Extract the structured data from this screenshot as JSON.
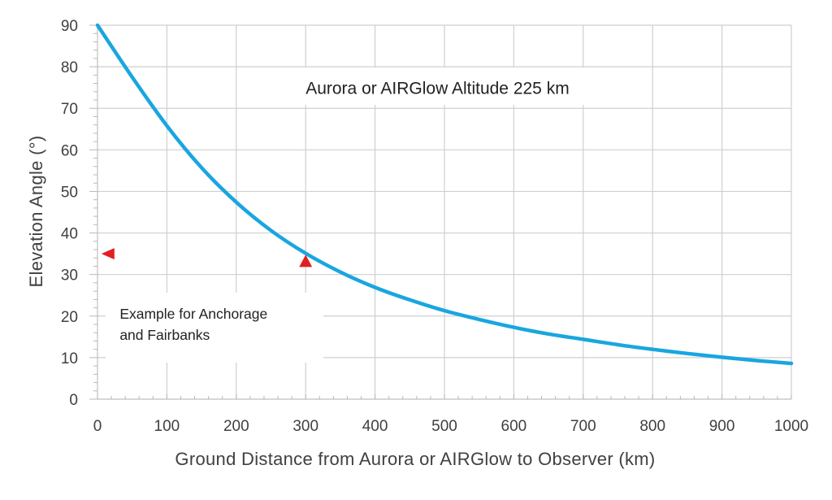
{
  "chart_data": {
    "type": "line",
    "xlabel": "Ground Distance from Aurora or AIRGlow to Observer (km)",
    "ylabel": "Elevation Angle (°)",
    "xlim": [
      0,
      1000
    ],
    "ylim": [
      0,
      90
    ],
    "x_ticks": [
      "0",
      "100",
      "200",
      "300",
      "400",
      "500",
      "600",
      "700",
      "800",
      "900",
      "1000"
    ],
    "y_ticks": [
      "0",
      "10",
      "20",
      "30",
      "40",
      "50",
      "60",
      "70",
      "80",
      "90"
    ],
    "grid": true,
    "series": [
      {
        "color": "#19a6e0",
        "x": [
          0,
          50,
          100,
          150,
          200,
          250,
          300,
          350,
          400,
          450,
          500,
          550,
          600,
          650,
          700,
          750,
          800,
          850,
          900,
          950,
          1000
        ],
        "y": [
          90,
          77.5,
          65.8,
          55.7,
          47.4,
          40.6,
          35.1,
          30.6,
          26.9,
          23.9,
          21.3,
          19.2,
          17.3,
          15.7,
          14.4,
          13.1,
          12.0,
          11.0,
          10.1,
          9.3,
          8.6
        ]
      }
    ],
    "annotations": [
      {
        "text": "Aurora or AIRGlow Altitude 225 km",
        "x": 490,
        "y": 75
      },
      {
        "text": "Example for Anchorage",
        "x": 32,
        "y": 20.5
      },
      {
        "text": "and Fairbanks",
        "x": 32,
        "y": 15.5
      }
    ],
    "markers": [
      {
        "shape": "triangle-left",
        "color": "#e02020",
        "x": 15,
        "y": 35
      },
      {
        "shape": "triangle-up",
        "color": "#e02020",
        "x": 300,
        "y": 33
      }
    ]
  }
}
